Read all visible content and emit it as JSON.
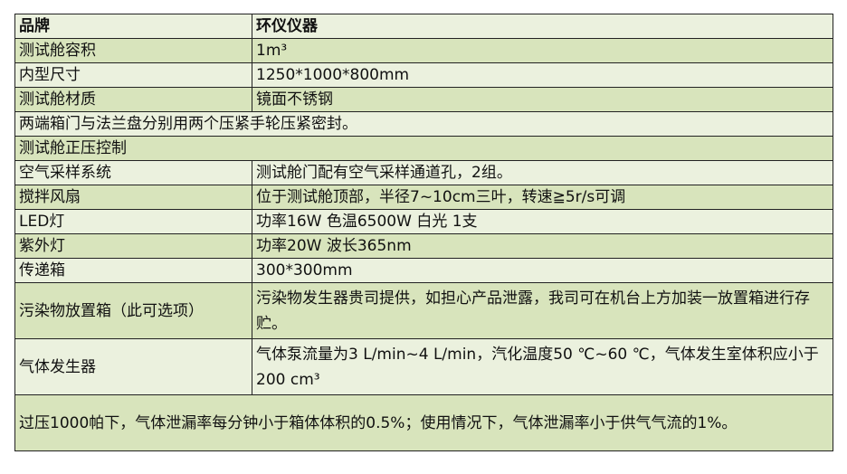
{
  "colors": {
    "row_light": "#ebf1de",
    "row_green": "#d8e4bc"
  },
  "rows": [
    {
      "key": "品牌",
      "value": "环仪仪器"
    },
    {
      "key": "测试舱容积",
      "value": "1m³"
    },
    {
      "key": "内型尺寸",
      "value": "1250*1000*800mm"
    },
    {
      "key": "测试舱材质",
      "value": "镜面不锈钢"
    },
    {
      "full": "两端箱门与法兰盘分别用两个压紧手轮压紧密封。"
    },
    {
      "full": "测试舱正压控制"
    },
    {
      "key": "空气采样系统",
      "value": "测试舱门配有空气采样通道孔，2组。"
    },
    {
      "key": "搅拌风扇",
      "value": "位于测试舱顶部，半径7~10cm三叶，转速≧5r/s可调"
    },
    {
      "key": "LED灯",
      "value": "功率16W 色温6500W  白光  1支"
    },
    {
      "key": "紫外灯",
      "value": "功率20W 波长365nm"
    },
    {
      "key": "传递箱",
      "value": "300*300mm"
    },
    {
      "key": "污染物放置箱（此可选项）",
      "value": "污染物发生器贵司提供，如担心产品泄露，我司可在机台上方加装一放置箱进行存贮。"
    },
    {
      "key": "气体发生器",
      "value": "气体泵流量为3 L/min~4 L/min，汽化温度50 ℃~60 ℃，气体发生室体积应小于200 cm³"
    },
    {
      "full": "过压1000帕下，气体泄漏率每分钟小于箱体体积的0.5%；使用情况下，气体泄漏率小于供气气流的1%。"
    }
  ]
}
